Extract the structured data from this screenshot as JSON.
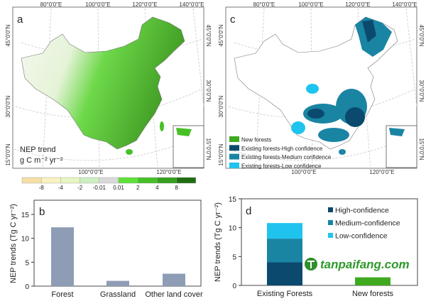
{
  "figure": {
    "panel_a": {
      "label": "a",
      "legend_title_line1": "NEP trend",
      "legend_title_line2": "g C m⁻² yr⁻²",
      "lon_labels_top": [
        "80°0'0\"E",
        "100°0'0\"E",
        "120°0'0\"E",
        "140°0'0\"E"
      ],
      "lon_labels_bottom": [
        "100°0'0\"E",
        "120°0'0\"E"
      ],
      "lat_labels": [
        "45°0'0\"N",
        "30°0'0\"N",
        "15°0'0\"N"
      ],
      "colorbar": {
        "ticks": [
          "-8",
          "-4",
          "-2",
          "-0.01",
          "0.01",
          "2",
          "4",
          "8"
        ],
        "colors": [
          "#f6dfa6",
          "#f8f2c0",
          "#e6f5c2",
          "#cdeec0",
          "#d9d9d9",
          "#5fe03a",
          "#46c026",
          "#35a01e",
          "#1f6d12"
        ]
      }
    },
    "panel_c": {
      "label": "c",
      "lon_labels_top": [
        "80°0'0\"E",
        "100°0'0\"E",
        "120°0'0\"E",
        "140°0'0\"E"
      ],
      "lon_labels_bottom": [
        "100°0'0\"E",
        "120°0'0\"E"
      ],
      "lat_labels": [
        "45°0'0\"N",
        "30°0'0\"N",
        "15°0'0\"N"
      ],
      "legend": [
        {
          "label": "New forests",
          "color": "#3faa1f"
        },
        {
          "label": "Existing forests-High confidence",
          "color": "#0b4a6e"
        },
        {
          "label": "Existing forests-Medium confidence",
          "color": "#1a84a3"
        },
        {
          "label": "Existing forests-Low confidence",
          "color": "#1fc4ee"
        }
      ]
    },
    "watermark": "tanpaifang.com"
  },
  "chart_data": [
    {
      "panel": "b",
      "type": "bar",
      "label": "b",
      "categories": [
        "Forest",
        "Grassland",
        "Other land cover"
      ],
      "values": [
        12.3,
        1.1,
        2.6
      ],
      "color": "#8e9db5",
      "ylabel": "NEP trends (Tg C yr⁻²)",
      "ylim": [
        0,
        18
      ],
      "yticks": [
        "0",
        "5",
        "10",
        "15"
      ],
      "grid": false
    },
    {
      "panel": "d",
      "type": "bar",
      "stacked": true,
      "label": "d",
      "categories": [
        "Existing Forests",
        "New forests"
      ],
      "series": [
        {
          "name": "High-confidence",
          "color": "#0b4a6e",
          "values": [
            4.0,
            0
          ]
        },
        {
          "name": "Medium-confidence",
          "color": "#1a84a3",
          "values": [
            4.1,
            0
          ]
        },
        {
          "name": "Low-confidence",
          "color": "#1fc4ee",
          "values": [
            2.7,
            0
          ]
        }
      ],
      "new_forests": {
        "value": 1.4,
        "color": "#3faa1f"
      },
      "ylabel": "NEP trends (Tg C yr⁻²)",
      "ylim": [
        0,
        15
      ],
      "yticks": [
        "0",
        "5",
        "10",
        "15"
      ],
      "legend_placement": "top-right",
      "grid": false
    }
  ]
}
